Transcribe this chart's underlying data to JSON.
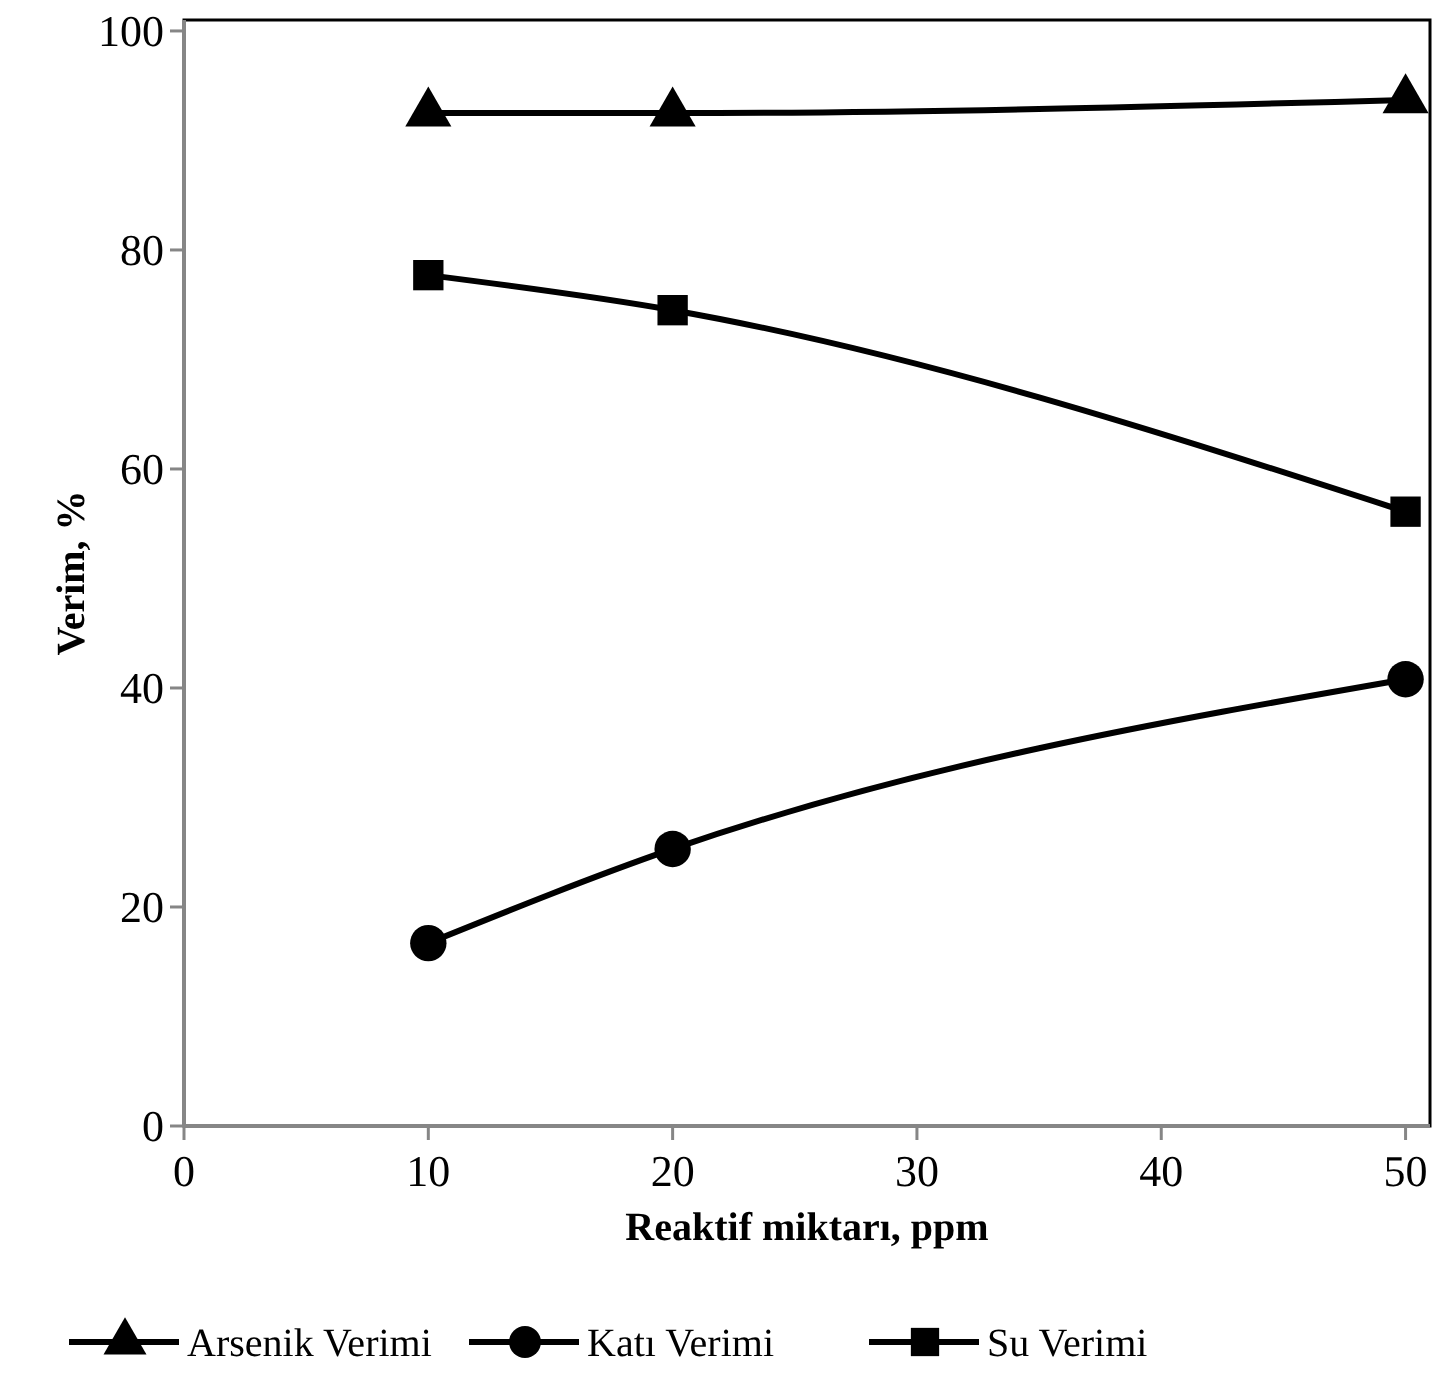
{
  "chart_data": {
    "type": "line",
    "xlabel": "Reaktif miktarı, ppm",
    "ylabel": "Verim, %",
    "x": [
      10,
      20,
      50
    ],
    "series": [
      {
        "name": "Arsenik Verimi",
        "color": "#000000",
        "values": [
          92.5,
          92.5,
          93.7
        ],
        "marker": "triangle"
      },
      {
        "name": "Katı Verimi",
        "color": "#000000",
        "values": [
          16.7,
          25.3,
          40.8
        ],
        "marker": "circle"
      },
      {
        "name": "Su Verimi",
        "color": "#000000",
        "values": [
          77.7,
          74.5,
          56.1
        ],
        "marker": "square"
      }
    ],
    "xlim": [
      0,
      51
    ],
    "xticks": [
      0,
      10,
      20,
      30,
      40,
      50
    ],
    "ylim": [
      0,
      101
    ],
    "yticks": [
      0,
      20,
      40,
      60,
      80,
      100
    ],
    "grid": false,
    "legend": "bottom",
    "line_style": "solid"
  }
}
